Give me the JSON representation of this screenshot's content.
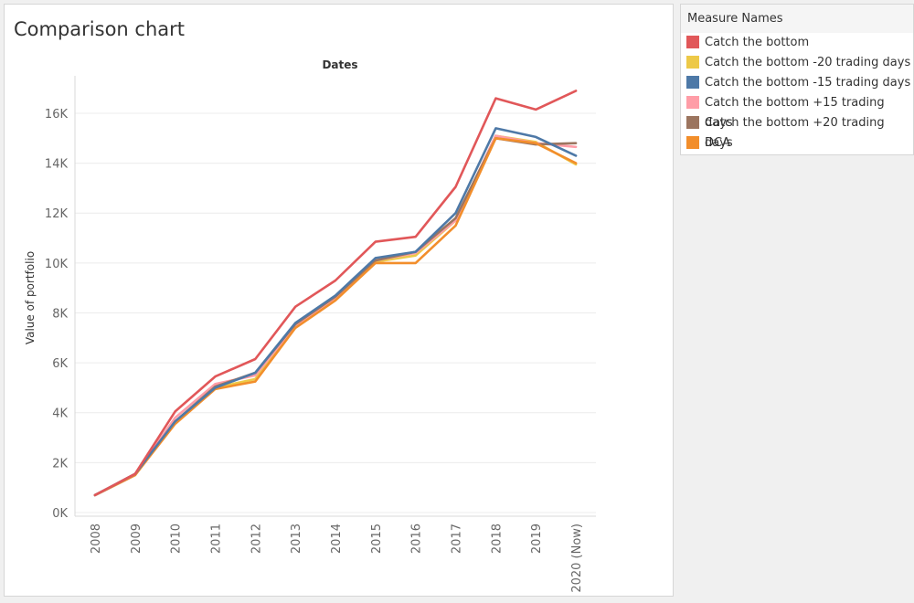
{
  "page": {
    "title": "Comparison chart"
  },
  "legend": {
    "title": "Measure Names"
  },
  "chart_data": {
    "type": "line",
    "title": "Comparison chart",
    "xlabel": "Dates",
    "ylabel": "Value of portfolio",
    "categories": [
      "2008",
      "2009",
      "2010",
      "2011",
      "2012",
      "2013",
      "2014",
      "2015",
      "2016",
      "2017",
      "2018",
      "2019",
      "2020 (Now)"
    ],
    "yticks": [
      "0K",
      "2K",
      "4K",
      "6K",
      "8K",
      "10K",
      "12K",
      "14K",
      "16K"
    ],
    "ylim": [
      0,
      17500
    ],
    "grid": true,
    "legend_position": "right",
    "series": [
      {
        "name": "Catch the bottom -20 trading days",
        "color": "#edc948",
        "values": [
          700,
          1500,
          3600,
          5000,
          5350,
          7450,
          8550,
          10050,
          10300,
          11700,
          15100,
          14850,
          13950
        ]
      },
      {
        "name": "Catch the bottom +15 trading days",
        "color": "#ff9da7",
        "values": [
          700,
          1500,
          3800,
          5150,
          5500,
          7500,
          8600,
          10100,
          10400,
          11700,
          15100,
          14800,
          14650
        ]
      },
      {
        "name": "Catch the bottom +20 trading days",
        "color": "#9c755f",
        "values": [
          700,
          1500,
          3650,
          5050,
          5600,
          7550,
          8650,
          10100,
          10450,
          11800,
          15000,
          14750,
          14800
        ]
      },
      {
        "name": "DCA",
        "color": "#f28e2b",
        "values": [
          700,
          1500,
          3550,
          4950,
          5250,
          7400,
          8500,
          10000,
          10000,
          11500,
          15000,
          14800,
          14000
        ]
      },
      {
        "name": "Catch the bottom -15 trading days",
        "color": "#4e79a7",
        "values": [
          700,
          1550,
          3650,
          5000,
          5600,
          7600,
          8700,
          10200,
          10450,
          12000,
          15400,
          15050,
          14300
        ]
      },
      {
        "name": "Catch the bottom",
        "color": "#e15759",
        "values": [
          700,
          1550,
          4050,
          5450,
          6150,
          8250,
          9300,
          10850,
          11050,
          13050,
          16600,
          16150,
          16900
        ]
      }
    ],
    "legend_items": [
      {
        "label": "Catch the bottom",
        "color": "#e15759"
      },
      {
        "label": "Catch the bottom -20 trading days",
        "color": "#edc948"
      },
      {
        "label": "Catch the bottom -15 trading days",
        "color": "#4e79a7"
      },
      {
        "label": "Catch the bottom +15 trading days",
        "color": "#ff9da7"
      },
      {
        "label": "Catch the bottom +20 trading days",
        "color": "#9c755f"
      },
      {
        "label": "DCA",
        "color": "#f28e2b"
      }
    ]
  }
}
